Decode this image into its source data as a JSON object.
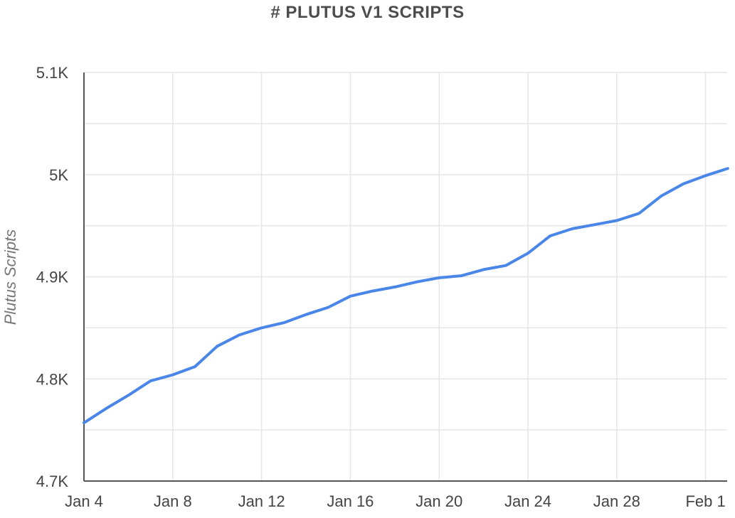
{
  "colors": {
    "series": "#4a86e8",
    "grid": "#e6e6e6",
    "axis": "#555555",
    "text": "#444444",
    "title": "#4d4d4d"
  },
  "chart_data": {
    "type": "line",
    "title": "# PLUTUS V1 SCRIPTS",
    "xlabel": "",
    "ylabel": "Plutus Scripts",
    "x_tick_labels": [
      "Jan 4",
      "Jan 8",
      "Jan 12",
      "Jan 16",
      "Jan 20",
      "Jan 24",
      "Jan 28",
      "Feb 1"
    ],
    "y_tick_labels": [
      "4.7K",
      "4.8K",
      "4.9K",
      "5K",
      "5.1K"
    ],
    "x_ticks": [
      "2022-01-04",
      "2022-01-08",
      "2022-01-12",
      "2022-01-16",
      "2022-01-20",
      "2022-01-24",
      "2022-01-28",
      "2022-02-01"
    ],
    "y_ticks": [
      4700,
      4800,
      4900,
      5000,
      5100
    ],
    "ylim": [
      4700,
      5100
    ],
    "xlim": [
      "2022-01-04",
      "2022-02-02"
    ],
    "grid": true,
    "series": [
      {
        "name": "",
        "x": [
          "2022-01-04",
          "2022-01-05",
          "2022-01-06",
          "2022-01-07",
          "2022-01-08",
          "2022-01-09",
          "2022-01-10",
          "2022-01-11",
          "2022-01-12",
          "2022-01-13",
          "2022-01-14",
          "2022-01-15",
          "2022-01-16",
          "2022-01-17",
          "2022-01-18",
          "2022-01-19",
          "2022-01-20",
          "2022-01-21",
          "2022-01-22",
          "2022-01-23",
          "2022-01-24",
          "2022-01-25",
          "2022-01-26",
          "2022-01-27",
          "2022-01-28",
          "2022-01-29",
          "2022-01-30",
          "2022-01-31",
          "2022-02-01",
          "2022-02-02"
        ],
        "values": [
          4757,
          4771,
          4784,
          4798,
          4804,
          4812,
          4832,
          4843,
          4850,
          4855,
          4863,
          4870,
          4881,
          4886,
          4890,
          4895,
          4899,
          4901,
          4907,
          4911,
          4923,
          4940,
          4947,
          4951,
          4955,
          4962,
          4979,
          4991,
          4999,
          5006
        ]
      }
    ]
  }
}
